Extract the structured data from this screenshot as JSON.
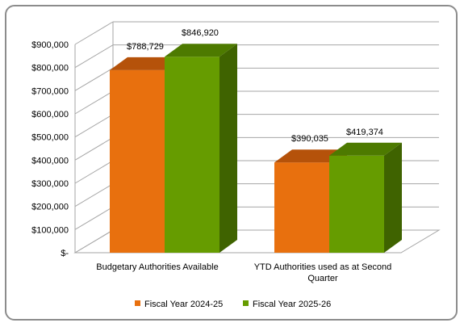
{
  "chart_data": {
    "type": "bar",
    "title": "",
    "xlabel": "",
    "ylabel": "",
    "ylim": [
      0,
      900000
    ],
    "y_ticks": [
      {
        "value": 0,
        "label": "$-"
      },
      {
        "value": 100000,
        "label": "$100,000"
      },
      {
        "value": 200000,
        "label": "$200,000"
      },
      {
        "value": 300000,
        "label": "$300,000"
      },
      {
        "value": 400000,
        "label": "$400,000"
      },
      {
        "value": 500000,
        "label": "$500,000"
      },
      {
        "value": 600000,
        "label": "$600,000"
      },
      {
        "value": 700000,
        "label": "$700,000"
      },
      {
        "value": 800000,
        "label": "$800,000"
      },
      {
        "value": 900000,
        "label": "$900,000"
      }
    ],
    "categories": [
      [
        "Budgetary Authorities Available"
      ],
      [
        "YTD Authorities used as at Second",
        "Quarter"
      ]
    ],
    "series": [
      {
        "name": "Fiscal Year 2024-25",
        "values": [
          788729,
          390035
        ],
        "labels": [
          "$788,729",
          "$390,035"
        ],
        "color": "#E8700E",
        "top_color": "#B5520A",
        "side_color": "#B5520A"
      },
      {
        "name": "Fiscal Year 2025-26",
        "values": [
          846920,
          419374
        ],
        "labels": [
          "$846,920",
          "$419,374"
        ],
        "color": "#669C00",
        "top_color": "#4D7A00",
        "side_color": "#3F6300"
      }
    ],
    "grid": true,
    "legend_position": "bottom",
    "style": "3d-clustered-column"
  }
}
